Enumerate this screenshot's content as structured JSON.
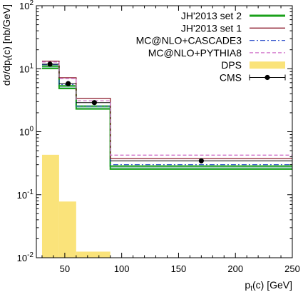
{
  "chart_data": {
    "type": "step",
    "title": "",
    "xlabel_main": "p",
    "xlabel_sub": "t",
    "xlabel_tail": "(c) [GeV]",
    "ylabel_main": "dσ/dp",
    "ylabel_sub": "t",
    "ylabel_tail": "(c) [nb/GeV]",
    "xlim": [
      25,
      250
    ],
    "ylim": [
      0.01,
      100
    ],
    "yscale": "log",
    "legend_position": "top-right",
    "x_ticks": [
      {
        "value": 50,
        "label": "50"
      },
      {
        "value": 100,
        "label": "100"
      },
      {
        "value": 150,
        "label": "150"
      },
      {
        "value": 200,
        "label": "200"
      },
      {
        "value": 250,
        "label": "250"
      }
    ],
    "y_ticks": [
      {
        "value": 0.01,
        "base": "10",
        "exp": "-2"
      },
      {
        "value": 0.1,
        "base": "10",
        "exp": "-1"
      },
      {
        "value": 1,
        "base": "10",
        "exp": "0"
      },
      {
        "value": 10,
        "base": "10",
        "exp": "1"
      },
      {
        "value": 100,
        "base": "10",
        "exp": "2"
      }
    ],
    "bin_edges": [
      30,
      45,
      60,
      90,
      250
    ],
    "series": [
      {
        "name": "DPS",
        "style": "fill",
        "color": "#fae37a",
        "values": [
          0.43,
          0.078,
          0.0125,
          0
        ]
      },
      {
        "name": "JH'2013 set 2",
        "style": "band",
        "color": "#1aa01a",
        "lower": [
          10.1,
          4.85,
          2.3,
          0.255
        ],
        "upper": [
          11.0,
          5.35,
          2.55,
          0.285
        ]
      },
      {
        "name": "JH'2013 set 1",
        "style": "solid",
        "color": "#8b1c2c",
        "values": [
          13.2,
          7.2,
          3.4,
          0.375
        ]
      },
      {
        "name": "MC@NLO+CASCADE3",
        "style": "dashdot",
        "color": "#3355cc",
        "values": [
          11.6,
          5.6,
          2.55,
          0.3
        ]
      },
      {
        "name": "MC@NLO+PYTHIA8",
        "style": "dashed",
        "color": "#d070c8",
        "values": [
          12.8,
          7.0,
          3.1,
          0.425
        ]
      },
      {
        "name": "CMS",
        "style": "points",
        "color": "#000000",
        "x": [
          37,
          53,
          76,
          170
        ],
        "values": [
          11.8,
          5.8,
          2.9,
          0.345
        ],
        "xerr_lo": [
          7,
          8,
          16,
          80
        ],
        "xerr_hi": [
          8,
          7,
          14,
          80
        ]
      }
    ],
    "legend_order": [
      "JH'2013 set 2",
      "JH'2013 set 1",
      "MC@NLO+CASCADE3",
      "MC@NLO+PYTHIA8",
      "DPS",
      "CMS"
    ]
  }
}
